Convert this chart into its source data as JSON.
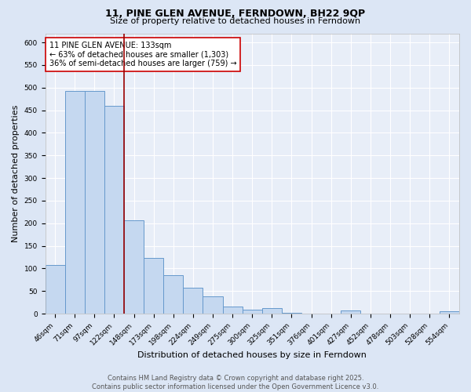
{
  "title": "11, PINE GLEN AVENUE, FERNDOWN, BH22 9QP",
  "subtitle": "Size of property relative to detached houses in Ferndown",
  "xlabel": "Distribution of detached houses by size in Ferndown",
  "ylabel": "Number of detached properties",
  "bar_labels": [
    "46sqm",
    "71sqm",
    "97sqm",
    "122sqm",
    "148sqm",
    "173sqm",
    "198sqm",
    "224sqm",
    "249sqm",
    "275sqm",
    "300sqm",
    "325sqm",
    "351sqm",
    "376sqm",
    "401sqm",
    "427sqm",
    "452sqm",
    "478sqm",
    "503sqm",
    "528sqm",
    "554sqm"
  ],
  "bar_values": [
    107,
    493,
    493,
    460,
    207,
    124,
    85,
    57,
    38,
    15,
    9,
    12,
    2,
    0,
    0,
    7,
    0,
    0,
    0,
    0,
    6
  ],
  "bar_color": "#c5d8f0",
  "bar_edge_color": "#6699cc",
  "background_color": "#dce6f5",
  "plot_bg_color": "#e8eef8",
  "grid_color": "#ffffff",
  "vline_x_index": 3.5,
  "vline_color": "#990000",
  "annotation_text": "11 PINE GLEN AVENUE: 133sqm\n← 63% of detached houses are smaller (1,303)\n36% of semi-detached houses are larger (759) →",
  "annotation_box_facecolor": "#ffffff",
  "annotation_box_edgecolor": "#cc0000",
  "footer_line1": "Contains HM Land Registry data © Crown copyright and database right 2025.",
  "footer_line2": "Contains public sector information licensed under the Open Government Licence v3.0.",
  "ylim": [
    0,
    620
  ],
  "yticks": [
    0,
    50,
    100,
    150,
    200,
    250,
    300,
    350,
    400,
    450,
    500,
    550,
    600
  ],
  "title_fontsize": 9,
  "subtitle_fontsize": 8,
  "tick_fontsize": 6.5,
  "label_fontsize": 8,
  "annotation_fontsize": 7,
  "footer_fontsize": 6
}
